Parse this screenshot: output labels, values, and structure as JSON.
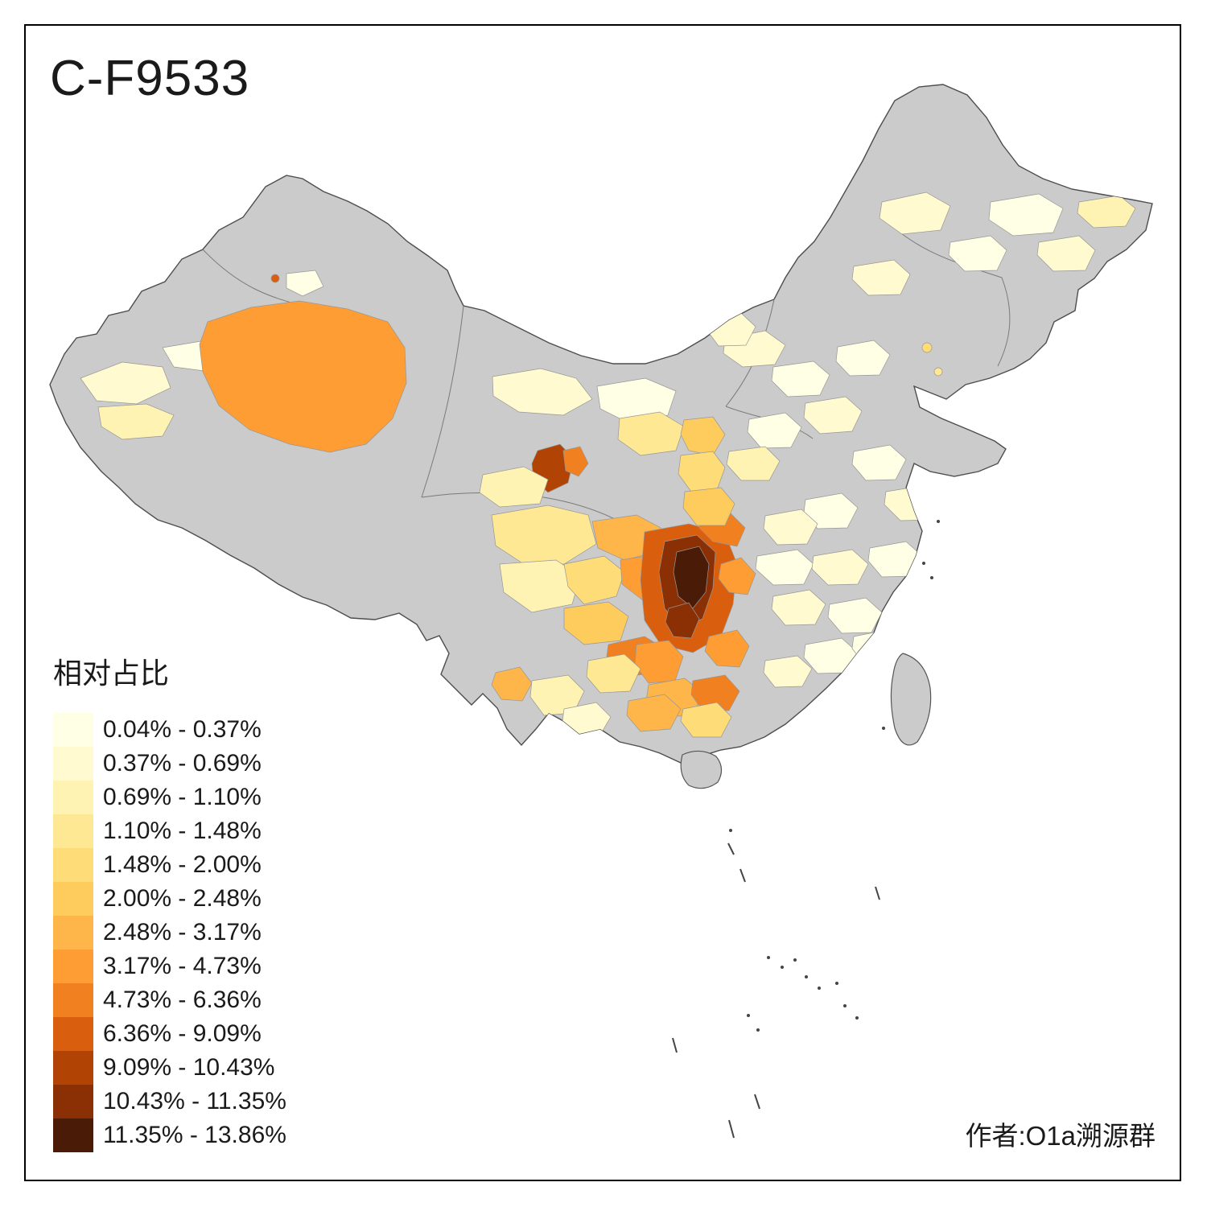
{
  "title": "C-F9533",
  "attribution": "作者:O1a溯源群",
  "legend": {
    "title": "相对占比",
    "classes": [
      {
        "label": "0.04% - 0.37%",
        "color": "#FFFFE5"
      },
      {
        "label": "0.37% - 0.69%",
        "color": "#FFFAD0"
      },
      {
        "label": "0.69% - 1.10%",
        "color": "#FFF3B4"
      },
      {
        "label": "1.10% - 1.48%",
        "color": "#FEE894"
      },
      {
        "label": "1.48% - 2.00%",
        "color": "#FEDC78"
      },
      {
        "label": "2.00% - 2.48%",
        "color": "#FECB5D"
      },
      {
        "label": "2.48% - 3.17%",
        "color": "#FEB64A"
      },
      {
        "label": "3.17% - 4.73%",
        "color": "#FD9D34"
      },
      {
        "label": "4.73% - 6.36%",
        "color": "#F08020"
      },
      {
        "label": "6.36% - 9.09%",
        "color": "#D95F0E"
      },
      {
        "label": "9.09% - 10.43%",
        "color": "#B14405"
      },
      {
        "label": "10.43% - 11.35%",
        "color": "#8A3004"
      },
      {
        "label": "11.35% - 13.86%",
        "color": "#4A1B06"
      }
    ]
  },
  "map": {
    "nodata_color": "#CBCBCB",
    "outline_color": "#4D4D4D",
    "region_border_color": "#979797",
    "background_color": "#FFFFFF"
  }
}
